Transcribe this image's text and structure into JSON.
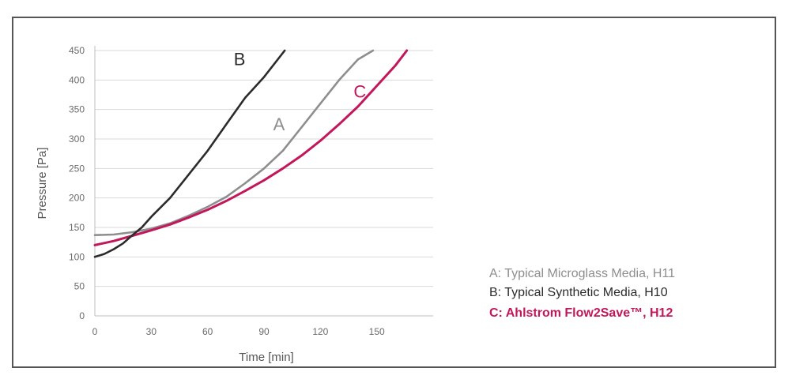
{
  "chart_data": {
    "type": "line",
    "xlabel": "Time [min]",
    "ylabel": "Pressure [Pa]",
    "xlim": [
      0,
      180
    ],
    "ylim": [
      0,
      450
    ],
    "xticks": [
      0,
      30,
      60,
      90,
      120,
      150
    ],
    "yticks": [
      0,
      50,
      100,
      150,
      200,
      250,
      300,
      350,
      400,
      450
    ],
    "grid": "horizontal",
    "legend_position": "right",
    "series": [
      {
        "curve_label": "A",
        "legend": "A: Typical Microglass Media, H11",
        "color": "#8e8e8e",
        "x": [
          0,
          10,
          20,
          30,
          40,
          50,
          60,
          70,
          80,
          90,
          100,
          110,
          120,
          130,
          140,
          148
        ],
        "y": [
          137,
          138,
          142,
          148,
          157,
          170,
          185,
          202,
          225,
          250,
          280,
          320,
          360,
          400,
          435,
          450
        ]
      },
      {
        "curve_label": "B",
        "legend": "B: Typical Synthetic Media, H10",
        "color": "#2b2b2b",
        "x": [
          0,
          5,
          10,
          15,
          20,
          25,
          30,
          40,
          50,
          60,
          70,
          80,
          90,
          101
        ],
        "y": [
          100,
          105,
          113,
          123,
          137,
          150,
          168,
          200,
          240,
          280,
          325,
          370,
          405,
          450
        ]
      },
      {
        "curve_label": "C",
        "legend": "C: Ahlstrom Flow2Save™, H12",
        "color": "#c2185b",
        "x": [
          0,
          10,
          20,
          30,
          40,
          50,
          60,
          70,
          80,
          90,
          100,
          110,
          120,
          130,
          140,
          150,
          160,
          166
        ],
        "y": [
          120,
          127,
          136,
          145,
          155,
          167,
          180,
          195,
          212,
          230,
          250,
          272,
          297,
          325,
          355,
          390,
          425,
          450
        ]
      }
    ]
  }
}
